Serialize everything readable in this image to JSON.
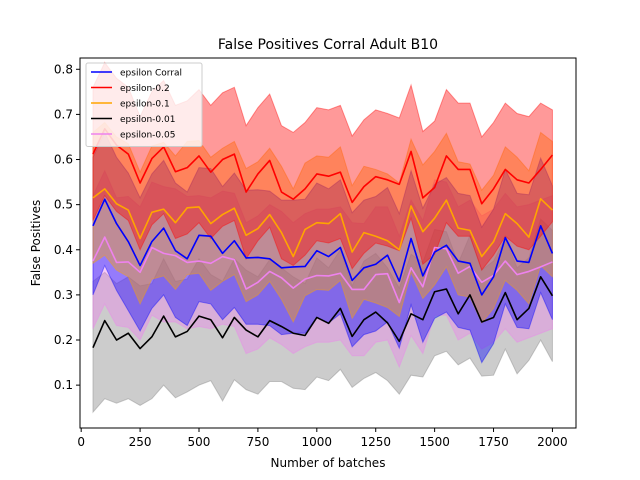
{
  "chart_data": {
    "type": "line",
    "title": "False Positives Corral Adult B10",
    "xlabel": "Number of batches",
    "ylabel": "False Positives",
    "xlim": [
      -5,
      2100
    ],
    "ylim": [
      0.005,
      0.825
    ],
    "xticks": [
      {
        "value": 0,
        "label": "0"
      },
      {
        "value": 250,
        "label": "250"
      },
      {
        "value": 500,
        "label": "500"
      },
      {
        "value": 750,
        "label": "750"
      },
      {
        "value": 1000,
        "label": "1000"
      },
      {
        "value": 1250,
        "label": "1250"
      },
      {
        "value": 1500,
        "label": "1500"
      },
      {
        "value": 1750,
        "label": "1750"
      },
      {
        "value": 2000,
        "label": "2000"
      }
    ],
    "yticks": [
      {
        "value": 0.1,
        "label": "0.1"
      },
      {
        "value": 0.2,
        "label": "0.2"
      },
      {
        "value": 0.3,
        "label": "0.3"
      },
      {
        "value": 0.4,
        "label": "0.4"
      },
      {
        "value": 0.5,
        "label": "0.5"
      },
      {
        "value": 0.6,
        "label": "0.6"
      },
      {
        "value": 0.7,
        "label": "0.7"
      },
      {
        "value": 0.8,
        "label": "0.8"
      }
    ],
    "grid": false,
    "legend_position": "top-left",
    "x": [
      50,
      100,
      150,
      200,
      250,
      300,
      350,
      400,
      450,
      500,
      550,
      600,
      650,
      700,
      750,
      800,
      850,
      900,
      950,
      1000,
      1050,
      1100,
      1150,
      1200,
      1250,
      1300,
      1350,
      1400,
      1450,
      1500,
      1550,
      1600,
      1650,
      1700,
      1750,
      1800,
      1850,
      1900,
      1950,
      2000
    ],
    "series": [
      {
        "name": "epsilon-0.01",
        "color": "#000000",
        "band_color": "#808080",
        "values": [
          0.183,
          0.243,
          0.2,
          0.215,
          0.181,
          0.207,
          0.253,
          0.207,
          0.219,
          0.253,
          0.245,
          0.205,
          0.25,
          0.222,
          0.207,
          0.243,
          0.23,
          0.215,
          0.21,
          0.25,
          0.237,
          0.27,
          0.208,
          0.245,
          0.262,
          0.238,
          0.197,
          0.258,
          0.245,
          0.307,
          0.313,
          0.258,
          0.3,
          0.24,
          0.25,
          0.305,
          0.245,
          0.27,
          0.34,
          0.298
        ],
        "lower": [
          0.04,
          0.07,
          0.06,
          0.07,
          0.055,
          0.07,
          0.1,
          0.072,
          0.085,
          0.1,
          0.11,
          0.065,
          0.112,
          0.09,
          0.08,
          0.108,
          0.108,
          0.093,
          0.09,
          0.118,
          0.11,
          0.135,
          0.095,
          0.115,
          0.128,
          0.11,
          0.08,
          0.122,
          0.118,
          0.165,
          0.175,
          0.145,
          0.16,
          0.12,
          0.122,
          0.18,
          0.125,
          0.155,
          0.2,
          0.152
        ],
        "upper": [
          0.33,
          0.35,
          0.325,
          0.34,
          0.32,
          0.325,
          0.38,
          0.33,
          0.335,
          0.38,
          0.345,
          0.33,
          0.38,
          0.355,
          0.34,
          0.378,
          0.36,
          0.34,
          0.325,
          0.382,
          0.36,
          0.4,
          0.32,
          0.375,
          0.392,
          0.36,
          0.315,
          0.39,
          0.372,
          0.445,
          0.44,
          0.37,
          0.432,
          0.355,
          0.375,
          0.425,
          0.36,
          0.382,
          0.468,
          0.443
        ]
      },
      {
        "name": "epsilon-0.05",
        "color": "#ee82ee",
        "band_color": "#ee82ee",
        "values": [
          0.375,
          0.428,
          0.372,
          0.373,
          0.35,
          0.405,
          0.392,
          0.387,
          0.372,
          0.375,
          0.37,
          0.385,
          0.378,
          0.313,
          0.328,
          0.352,
          0.338,
          0.315,
          0.335,
          0.343,
          0.342,
          0.348,
          0.312,
          0.312,
          0.345,
          0.347,
          0.283,
          0.36,
          0.318,
          0.405,
          0.402,
          0.348,
          0.363,
          0.328,
          0.343,
          0.375,
          0.345,
          0.352,
          0.362,
          0.373
        ],
        "lower": [
          0.225,
          0.28,
          0.232,
          0.228,
          0.2,
          0.255,
          0.24,
          0.24,
          0.225,
          0.23,
          0.225,
          0.235,
          0.23,
          0.17,
          0.18,
          0.205,
          0.19,
          0.17,
          0.185,
          0.195,
          0.195,
          0.2,
          0.165,
          0.165,
          0.195,
          0.2,
          0.14,
          0.21,
          0.17,
          0.255,
          0.255,
          0.2,
          0.215,
          0.18,
          0.195,
          0.225,
          0.195,
          0.205,
          0.215,
          0.225
        ],
        "upper": [
          0.52,
          0.575,
          0.515,
          0.518,
          0.495,
          0.55,
          0.54,
          0.535,
          0.518,
          0.52,
          0.515,
          0.53,
          0.525,
          0.46,
          0.475,
          0.5,
          0.485,
          0.46,
          0.48,
          0.49,
          0.49,
          0.495,
          0.46,
          0.458,
          0.495,
          0.495,
          0.43,
          0.51,
          0.465,
          0.555,
          0.55,
          0.495,
          0.51,
          0.475,
          0.49,
          0.525,
          0.495,
          0.5,
          0.51,
          0.52
        ]
      },
      {
        "name": "epsilon Corral",
        "color": "#0000ff",
        "band_color": "#0000ff",
        "values": [
          0.453,
          0.512,
          0.458,
          0.418,
          0.365,
          0.418,
          0.448,
          0.398,
          0.38,
          0.432,
          0.43,
          0.392,
          0.42,
          0.382,
          0.383,
          0.38,
          0.36,
          0.362,
          0.363,
          0.398,
          0.385,
          0.405,
          0.332,
          0.36,
          0.368,
          0.388,
          0.33,
          0.425,
          0.342,
          0.395,
          0.41,
          0.375,
          0.37,
          0.3,
          0.34,
          0.427,
          0.375,
          0.372,
          0.453,
          0.392
        ],
        "lower": [
          0.3,
          0.365,
          0.31,
          0.265,
          0.22,
          0.27,
          0.3,
          0.25,
          0.232,
          0.285,
          0.28,
          0.245,
          0.272,
          0.235,
          0.235,
          0.232,
          0.212,
          0.215,
          0.215,
          0.25,
          0.238,
          0.258,
          0.185,
          0.212,
          0.22,
          0.24,
          0.182,
          0.278,
          0.195,
          0.248,
          0.262,
          0.228,
          0.222,
          0.15,
          0.192,
          0.28,
          0.228,
          0.225,
          0.305,
          0.245
        ],
        "upper": [
          0.605,
          0.66,
          0.605,
          0.57,
          0.515,
          0.568,
          0.598,
          0.548,
          0.528,
          0.582,
          0.58,
          0.54,
          0.57,
          0.532,
          0.533,
          0.53,
          0.51,
          0.51,
          0.512,
          0.548,
          0.535,
          0.555,
          0.482,
          0.51,
          0.518,
          0.538,
          0.48,
          0.575,
          0.492,
          0.545,
          0.56,
          0.525,
          0.52,
          0.45,
          0.49,
          0.578,
          0.525,
          0.522,
          0.603,
          0.542
        ]
      },
      {
        "name": "epsilon-0.1",
        "color": "#ffa500",
        "band_color": "#ffa500",
        "values": [
          0.515,
          0.535,
          0.502,
          0.488,
          0.425,
          0.483,
          0.49,
          0.46,
          0.493,
          0.495,
          0.458,
          0.478,
          0.492,
          0.432,
          0.447,
          0.478,
          0.438,
          0.385,
          0.445,
          0.46,
          0.458,
          0.48,
          0.395,
          0.438,
          0.43,
          0.42,
          0.4,
          0.497,
          0.44,
          0.47,
          0.51,
          0.448,
          0.443,
          0.385,
          0.418,
          0.48,
          0.458,
          0.428,
          0.513,
          0.488
        ],
        "lower": [
          0.37,
          0.388,
          0.355,
          0.34,
          0.28,
          0.335,
          0.342,
          0.312,
          0.345,
          0.348,
          0.31,
          0.33,
          0.345,
          0.285,
          0.3,
          0.33,
          0.29,
          0.24,
          0.298,
          0.312,
          0.31,
          0.332,
          0.248,
          0.29,
          0.282,
          0.272,
          0.252,
          0.35,
          0.292,
          0.322,
          0.362,
          0.3,
          0.295,
          0.238,
          0.27,
          0.332,
          0.31,
          0.28,
          0.365,
          0.34
        ],
        "upper": [
          0.66,
          0.682,
          0.65,
          0.635,
          0.572,
          0.63,
          0.638,
          0.608,
          0.64,
          0.642,
          0.605,
          0.625,
          0.64,
          0.58,
          0.595,
          0.625,
          0.585,
          0.535,
          0.592,
          0.608,
          0.605,
          0.628,
          0.542,
          0.585,
          0.578,
          0.568,
          0.548,
          0.645,
          0.588,
          0.618,
          0.658,
          0.595,
          0.59,
          0.532,
          0.565,
          0.628,
          0.605,
          0.575,
          0.66,
          0.64
        ]
      },
      {
        "name": "epsilon-0.2",
        "color": "#ff0000",
        "band_color": "#ff0000",
        "values": [
          0.612,
          0.668,
          0.632,
          0.612,
          0.548,
          0.602,
          0.628,
          0.573,
          0.582,
          0.608,
          0.572,
          0.6,
          0.612,
          0.528,
          0.568,
          0.598,
          0.528,
          0.512,
          0.535,
          0.568,
          0.563,
          0.572,
          0.505,
          0.54,
          0.562,
          0.555,
          0.545,
          0.618,
          0.515,
          0.538,
          0.608,
          0.578,
          0.578,
          0.502,
          0.535,
          0.578,
          0.555,
          0.548,
          0.578,
          0.61
        ],
        "lower": [
          0.465,
          0.52,
          0.485,
          0.465,
          0.4,
          0.455,
          0.48,
          0.425,
          0.435,
          0.46,
          0.425,
          0.452,
          0.465,
          0.38,
          0.42,
          0.45,
          0.38,
          0.365,
          0.388,
          0.42,
          0.415,
          0.425,
          0.358,
          0.392,
          0.415,
          0.408,
          0.398,
          0.47,
          0.368,
          0.39,
          0.46,
          0.43,
          0.43,
          0.355,
          0.388,
          0.43,
          0.408,
          0.4,
          0.43,
          0.462
        ],
        "upper": [
          0.76,
          0.815,
          0.78,
          0.76,
          0.695,
          0.75,
          0.775,
          0.72,
          0.73,
          0.755,
          0.72,
          0.748,
          0.76,
          0.675,
          0.715,
          0.745,
          0.675,
          0.66,
          0.682,
          0.715,
          0.71,
          0.72,
          0.652,
          0.688,
          0.71,
          0.702,
          0.692,
          0.765,
          0.662,
          0.685,
          0.755,
          0.725,
          0.725,
          0.65,
          0.682,
          0.725,
          0.702,
          0.695,
          0.725,
          0.71
        ]
      }
    ],
    "legend_order": [
      "epsilon Corral",
      "epsilon-0.2",
      "epsilon-0.1",
      "epsilon-0.01",
      "epsilon-0.05"
    ]
  }
}
